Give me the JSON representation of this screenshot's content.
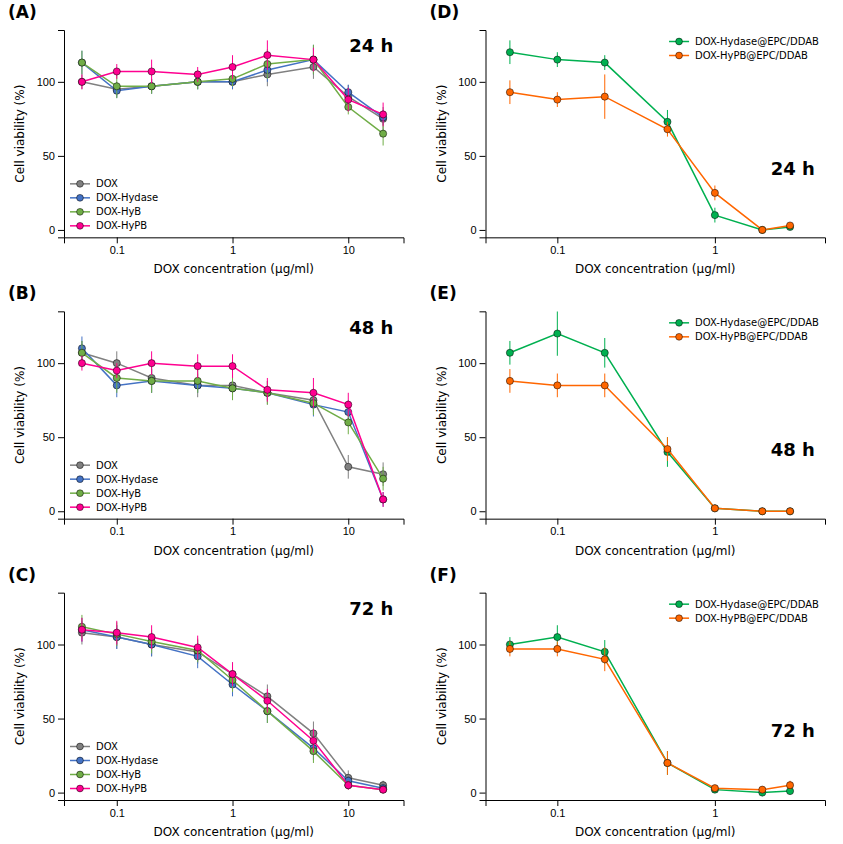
{
  "chart_data": [
    {
      "type": "line",
      "title": "(A)",
      "annotations": [
        "24 h"
      ],
      "xlabel": "DOX concentration (μg/ml)",
      "ylabel": "Cell viability (%)",
      "log": "x",
      "xlim": [
        0.035,
        30
      ],
      "xticks": [
        0.1,
        1,
        10
      ],
      "ylim": [
        -5,
        135
      ],
      "yticks": [
        0,
        50,
        100
      ],
      "grid": false,
      "legend": "lower left",
      "x": [
        0.05,
        0.1,
        0.2,
        0.5,
        1.0,
        2.0,
        5.0,
        10.0,
        20.0
      ],
      "series": [
        {
          "name": "DOX",
          "color": "#808080",
          "marker": "circle",
          "line_style": "solid",
          "values": [
            100,
            95,
            97,
            100,
            100,
            105,
            110,
            90,
            75
          ],
          "errors": [
            5,
            5,
            5,
            5,
            5,
            8,
            8,
            8,
            8
          ]
        },
        {
          "name": "DOX-Hydase",
          "color": "#4472C4",
          "marker": "circle",
          "line_style": "solid",
          "values": [
            113,
            94,
            97,
            100,
            100,
            108,
            115,
            93,
            76
          ],
          "errors": [
            8,
            5,
            5,
            5,
            5,
            8,
            10,
            5,
            5
          ]
        },
        {
          "name": "DOX-HyB",
          "color": "#70AD47",
          "marker": "circle",
          "line_style": "solid",
          "values": [
            113,
            97,
            97,
            100,
            102,
            112,
            115,
            83,
            65
          ],
          "errors": [
            8,
            8,
            5,
            5,
            5,
            10,
            10,
            5,
            8
          ]
        },
        {
          "name": "DOX-HyPB",
          "color": "#FF0090",
          "marker": "circle",
          "line_style": "solid",
          "values": [
            100,
            107,
            107,
            105,
            110,
            118,
            115,
            88,
            78
          ],
          "errors": [
            5,
            5,
            8,
            5,
            8,
            10,
            8,
            8,
            8
          ]
        }
      ]
    },
    {
      "type": "line",
      "title": "(B)",
      "annotations": [
        "48 h"
      ],
      "xlabel": "DOX concentration (μg/ml)",
      "ylabel": "Cell viability (%)",
      "log": "x",
      "xlim": [
        0.035,
        30
      ],
      "xticks": [
        0.1,
        1,
        10
      ],
      "ylim": [
        -5,
        135
      ],
      "yticks": [
        0,
        50,
        100
      ],
      "grid": false,
      "legend": "lower left",
      "x": [
        0.05,
        0.1,
        0.2,
        0.5,
        1.0,
        2.0,
        5.0,
        10.0,
        20.0
      ],
      "series": [
        {
          "name": "DOX",
          "color": "#808080",
          "marker": "circle",
          "line_style": "solid",
          "values": [
            107,
            100,
            90,
            85,
            85,
            80,
            75,
            30,
            25
          ],
          "errors": [
            8,
            8,
            10,
            8,
            8,
            8,
            8,
            8,
            8
          ]
        },
        {
          "name": "DOX-Hydase",
          "color": "#4472C4",
          "marker": "circle",
          "line_style": "solid",
          "values": [
            110,
            85,
            88,
            85,
            83,
            80,
            72,
            67,
            8
          ],
          "errors": [
            8,
            8,
            8,
            5,
            5,
            5,
            8,
            8,
            5
          ]
        },
        {
          "name": "DOX-HyB",
          "color": "#70AD47",
          "marker": "circle",
          "line_style": "solid",
          "values": [
            107,
            90,
            88,
            88,
            83,
            80,
            73,
            60,
            22
          ],
          "errors": [
            8,
            10,
            8,
            8,
            8,
            8,
            8,
            8,
            8
          ]
        },
        {
          "name": "DOX-HyPB",
          "color": "#FF0090",
          "marker": "circle",
          "line_style": "solid",
          "values": [
            100,
            95,
            100,
            98,
            98,
            82,
            80,
            72,
            8
          ],
          "errors": [
            5,
            5,
            8,
            8,
            8,
            8,
            10,
            8,
            5
          ]
        }
      ]
    },
    {
      "type": "line",
      "title": "(C)",
      "annotations": [
        "72 h"
      ],
      "xlabel": "DOX concentration (μg/ml)",
      "ylabel": "Cell viability (%)",
      "log": "x",
      "xlim": [
        0.035,
        30
      ],
      "xticks": [
        0.1,
        1,
        10
      ],
      "ylim": [
        -5,
        135
      ],
      "yticks": [
        0,
        50,
        100
      ],
      "grid": false,
      "legend": "lower left",
      "x": [
        0.05,
        0.1,
        0.2,
        0.5,
        1.0,
        2.0,
        5.0,
        10.0,
        20.0
      ],
      "series": [
        {
          "name": "DOX",
          "color": "#808080",
          "marker": "circle",
          "line_style": "solid",
          "values": [
            108,
            105,
            100,
            95,
            80,
            65,
            40,
            10,
            5
          ],
          "errors": [
            8,
            8,
            8,
            8,
            8,
            8,
            8,
            5,
            3
          ]
        },
        {
          "name": "DOX-Hydase",
          "color": "#4472C4",
          "marker": "circle",
          "line_style": "solid",
          "values": [
            110,
            105,
            100,
            92,
            73,
            55,
            30,
            8,
            3
          ],
          "errors": [
            8,
            8,
            8,
            8,
            8,
            8,
            8,
            3,
            2
          ]
        },
        {
          "name": "DOX-HyB",
          "color": "#70AD47",
          "marker": "circle",
          "line_style": "solid",
          "values": [
            112,
            107,
            102,
            96,
            76,
            55,
            28,
            5,
            2
          ],
          "errors": [
            8,
            8,
            8,
            8,
            8,
            8,
            8,
            3,
            2
          ]
        },
        {
          "name": "DOX-HyPB",
          "color": "#FF0090",
          "marker": "circle",
          "line_style": "solid",
          "values": [
            110,
            108,
            105,
            98,
            80,
            62,
            35,
            5,
            2
          ],
          "errors": [
            8,
            8,
            8,
            8,
            8,
            8,
            8,
            3,
            2
          ]
        }
      ]
    },
    {
      "type": "line",
      "title": "(D)",
      "annotations": [
        "24 h"
      ],
      "xlabel": "DOX concentration (μg/ml)",
      "ylabel": "Cell viability (%)",
      "log": "x",
      "xlim": [
        0.035,
        5
      ],
      "xticks": [
        0.1,
        1
      ],
      "ylim": [
        -5,
        135
      ],
      "yticks": [
        0,
        50,
        100
      ],
      "grid": false,
      "legend": "upper right",
      "x": [
        0.05,
        0.1,
        0.2,
        0.5,
        1.0,
        2.0,
        3.0
      ],
      "series": [
        {
          "name": "DOX-Hydase@EPC/DDAB",
          "color": "#00B050",
          "marker": "circle",
          "line_style": "solid",
          "values": [
            120,
            115,
            113,
            73,
            10,
            0,
            2
          ],
          "errors": [
            8,
            5,
            5,
            8,
            5,
            2,
            2
          ]
        },
        {
          "name": "DOX-HyPB@EPC/DDAB",
          "color": "#FF6600",
          "marker": "circle",
          "line_style": "solid",
          "values": [
            93,
            88,
            90,
            68,
            25,
            0,
            3
          ],
          "errors": [
            8,
            5,
            15,
            5,
            5,
            2,
            2
          ]
        }
      ]
    },
    {
      "type": "line",
      "title": "(E)",
      "annotations": [
        "48 h"
      ],
      "xlabel": "DOX concentration (μg/ml)",
      "ylabel": "Cell viability (%)",
      "log": "x",
      "xlim": [
        0.035,
        5
      ],
      "xticks": [
        0.1,
        1
      ],
      "ylim": [
        -5,
        135
      ],
      "yticks": [
        0,
        50,
        100
      ],
      "grid": false,
      "legend": "upper right",
      "x": [
        0.05,
        0.1,
        0.2,
        0.5,
        1.0,
        2.0,
        3.0
      ],
      "series": [
        {
          "name": "DOX-Hydase@EPC/DDAB",
          "color": "#00B050",
          "marker": "circle",
          "line_style": "solid",
          "values": [
            107,
            120,
            107,
            40,
            2,
            0,
            0
          ],
          "errors": [
            8,
            15,
            10,
            10,
            2,
            1,
            1
          ]
        },
        {
          "name": "DOX-HyPB@EPC/DDAB",
          "color": "#FF6600",
          "marker": "circle",
          "line_style": "solid",
          "values": [
            88,
            85,
            85,
            42,
            2,
            0,
            0
          ],
          "errors": [
            8,
            8,
            8,
            8,
            2,
            1,
            1
          ]
        }
      ]
    },
    {
      "type": "line",
      "title": "(F)",
      "annotations": [
        "72 h"
      ],
      "xlabel": "DOX concentration (μg/ml)",
      "ylabel": "Cell viability (%)",
      "log": "x",
      "xlim": [
        0.035,
        5
      ],
      "xticks": [
        0.1,
        1
      ],
      "ylim": [
        -5,
        135
      ],
      "yticks": [
        0,
        50,
        100
      ],
      "grid": false,
      "legend": "upper right",
      "x": [
        0.05,
        0.1,
        0.2,
        0.5,
        1.0,
        2.0,
        3.0
      ],
      "series": [
        {
          "name": "DOX-Hydase@EPC/DDAB",
          "color": "#00B050",
          "marker": "circle",
          "line_style": "solid",
          "values": [
            100,
            105,
            95,
            20,
            2,
            0,
            1
          ],
          "errors": [
            5,
            8,
            8,
            8,
            2,
            1,
            1
          ]
        },
        {
          "name": "DOX-HyPB@EPC/DDAB",
          "color": "#FF6600",
          "marker": "circle",
          "line_style": "solid",
          "values": [
            97,
            97,
            90,
            20,
            3,
            2,
            5
          ],
          "errors": [
            5,
            5,
            8,
            8,
            2,
            2,
            3
          ]
        }
      ]
    }
  ]
}
